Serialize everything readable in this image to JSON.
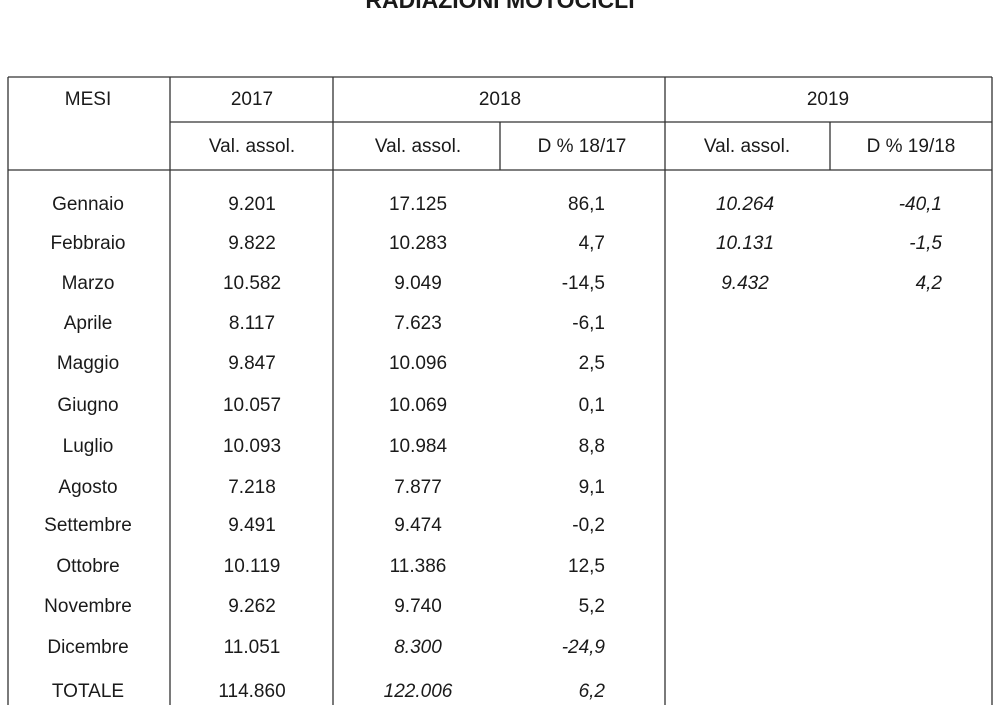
{
  "title": "RADIAZIONI MOTOCICLI",
  "header": {
    "mesi": "MESI",
    "years": [
      "2017",
      "2018",
      "2019"
    ],
    "subheaders": [
      "Val. assol.",
      "Val. assol.",
      "D % 18/17",
      "Val. assol.",
      "D % 19/18"
    ]
  },
  "rows": [
    [
      "Gennaio",
      "9.201",
      "17.125",
      "86,1",
      "10.264",
      "-40,1"
    ],
    [
      "Febbraio",
      "9.822",
      "10.283",
      "4,7",
      "10.131",
      "-1,5"
    ],
    [
      "Marzo",
      "10.582",
      "9.049",
      "-14,5",
      "9.432",
      "4,2"
    ],
    [
      "Aprile",
      "8.117",
      "7.623",
      "-6,1"
    ],
    [
      "Maggio",
      "9.847",
      "10.096",
      "2,5"
    ],
    [
      "Giugno",
      "10.057",
      "10.069",
      "0,1"
    ],
    [
      "Luglio",
      "10.093",
      "10.984",
      "8,8"
    ],
    [
      "Agosto",
      "7.218",
      "7.877",
      "9,1"
    ],
    [
      "Settembre",
      "9.491",
      "9.474",
      "-0,2"
    ],
    [
      "Ottobre",
      "10.119",
      "11.386",
      "12,5"
    ],
    [
      "Novembre",
      "9.262",
      "9.740",
      "5,2"
    ],
    [
      "Dicembre",
      "11.051",
      "8.300",
      "-24,9"
    ]
  ],
  "total": [
    "TOTALE",
    "114.860",
    "122.006",
    "6,2"
  ]
}
